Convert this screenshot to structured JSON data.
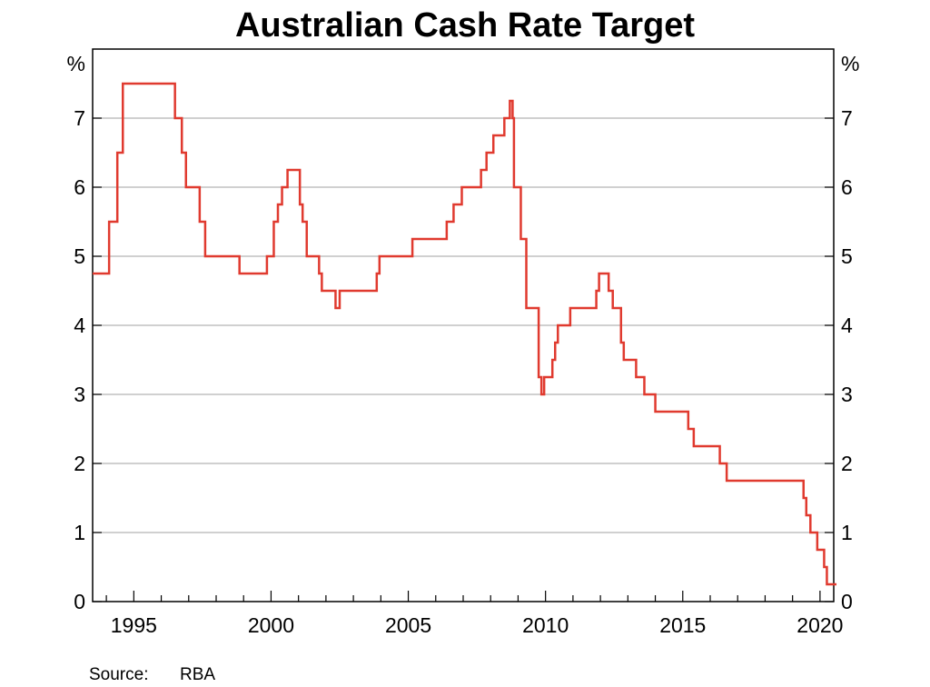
{
  "chart_data": {
    "type": "line",
    "title": "Australian Cash Rate Target",
    "ylabel_left": "%",
    "ylabel_right": "%",
    "xlim": [
      1993.5,
      2020.5
    ],
    "ylim": [
      0,
      8
    ],
    "yticks": [
      0,
      1,
      2,
      3,
      4,
      5,
      6,
      7
    ],
    "xticks": [
      1995,
      2000,
      2005,
      2010,
      2015,
      2020
    ],
    "grid": true,
    "line_color": "#e03a2f",
    "step": true,
    "series": [
      {
        "x": [
          1993.5,
          1994.1,
          1994.4,
          1994.6,
          1994.75,
          1996.5,
          1996.75,
          1996.9,
          1997.4,
          1997.6,
          1998.85,
          1999.85,
          2000.1,
          2000.25,
          2000.4,
          2000.6,
          2001.05,
          2001.15,
          2001.3,
          2001.75,
          2001.85,
          2002.35,
          2002.5,
          2003.85,
          2003.95,
          2005.15,
          2006.4,
          2006.65,
          2006.95,
          2007.65,
          2007.85,
          2008.1,
          2008.5,
          2008.7,
          2008.8,
          2008.85,
          2009.1,
          2009.3,
          2009.75,
          2009.85,
          2009.95,
          2010.25,
          2010.35,
          2010.45,
          2010.9,
          2011.85,
          2011.95,
          2012.3,
          2012.45,
          2012.75,
          2012.85,
          2013.3,
          2013.6,
          2014.0,
          2015.2,
          2015.4,
          2016.35,
          2016.6,
          2019.4,
          2019.5,
          2019.65,
          2019.9,
          2020.15,
          2020.25,
          2020.6
        ],
        "y": [
          4.75,
          5.5,
          6.5,
          7.5,
          7.5,
          7.0,
          6.5,
          6.0,
          5.5,
          5.0,
          4.75,
          5.0,
          5.5,
          5.75,
          6.0,
          6.25,
          5.75,
          5.5,
          5.0,
          4.75,
          4.5,
          4.25,
          4.5,
          4.75,
          5.0,
          5.25,
          5.5,
          5.75,
          6.0,
          6.25,
          6.5,
          6.75,
          7.0,
          7.25,
          7.0,
          6.0,
          5.25,
          4.25,
          3.25,
          3.0,
          3.25,
          3.5,
          3.75,
          4.0,
          4.25,
          4.5,
          4.75,
          4.5,
          4.25,
          3.75,
          3.5,
          3.25,
          3.0,
          2.75,
          2.5,
          2.25,
          2.0,
          1.75,
          1.5,
          1.25,
          1.0,
          0.75,
          0.5,
          0.25,
          0.25
        ]
      }
    ]
  },
  "source_label": "Source:",
  "source_value": "RBA"
}
